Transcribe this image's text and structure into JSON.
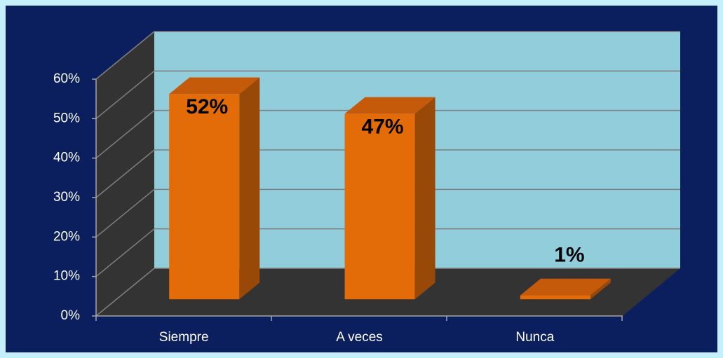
{
  "chart_data": {
    "type": "bar3d",
    "categories": [
      "Siempre",
      "A veces",
      "Nunca"
    ],
    "values": [
      52,
      47,
      1
    ],
    "value_labels": [
      "52%",
      "47%",
      "1%"
    ],
    "color": "#e36c09",
    "ylim": [
      0,
      60
    ],
    "yticks": [
      {
        "value": 0,
        "label": "0%"
      },
      {
        "value": 10,
        "label": "10%"
      },
      {
        "value": 20,
        "label": "20%"
      },
      {
        "value": 30,
        "label": "30%"
      },
      {
        "value": 40,
        "label": "40%"
      },
      {
        "value": 50,
        "label": "50%"
      },
      {
        "value": 60,
        "label": "60%"
      }
    ],
    "grid": true
  }
}
